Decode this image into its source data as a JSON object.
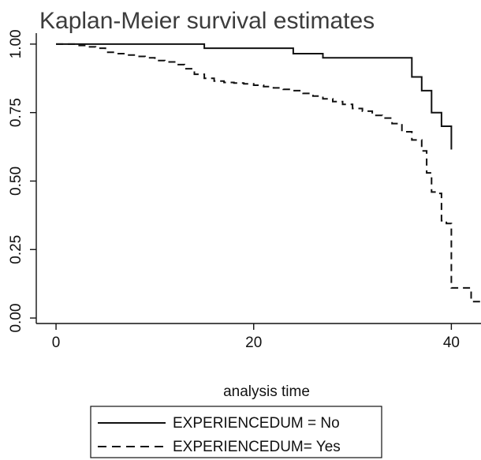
{
  "chart_data": {
    "type": "line",
    "step": true,
    "title": "Kaplan-Meier survival estimates",
    "xlabel": "analysis time",
    "ylabel": "",
    "xlim": [
      -2,
      43
    ],
    "ylim": [
      -0.02,
      1.04
    ],
    "xticks": [
      0,
      20,
      40
    ],
    "xtick_labels": [
      "0",
      "20",
      "40"
    ],
    "yticks": [
      0,
      0.25,
      0.5,
      0.75,
      1.0
    ],
    "ytick_labels": [
      "0.00",
      "0.25",
      "0.50",
      "0.75",
      "1.00"
    ],
    "grid": false,
    "legend_position": "bottom-center",
    "series": [
      {
        "name": "EXPERIENCEDUM = No",
        "style": "solid",
        "color": "#111111",
        "x": [
          0,
          15,
          24,
          27,
          36,
          37,
          38,
          39,
          40
        ],
        "y": [
          1.0,
          0.985,
          0.965,
          0.95,
          0.88,
          0.83,
          0.75,
          0.7,
          0.615
        ]
      },
      {
        "name": "EXPERIENCEDUM= Yes",
        "style": "dashed",
        "color": "#111111",
        "x": [
          0,
          2,
          3,
          4,
          5,
          6,
          7,
          8,
          9,
          10,
          11,
          12,
          13,
          14,
          15,
          16,
          17,
          18,
          19,
          20,
          21,
          22,
          23,
          24,
          25,
          26,
          27,
          28,
          29,
          30,
          31,
          32,
          33,
          34,
          35,
          36,
          37,
          37.5,
          38,
          38.5,
          39,
          39.5,
          40,
          42,
          43
        ],
        "y": [
          1.0,
          0.995,
          0.99,
          0.985,
          0.97,
          0.965,
          0.96,
          0.955,
          0.95,
          0.94,
          0.935,
          0.925,
          0.91,
          0.89,
          0.875,
          0.865,
          0.86,
          0.858,
          0.855,
          0.85,
          0.845,
          0.84,
          0.835,
          0.83,
          0.82,
          0.81,
          0.8,
          0.79,
          0.78,
          0.765,
          0.755,
          0.74,
          0.73,
          0.71,
          0.68,
          0.65,
          0.61,
          0.53,
          0.46,
          0.455,
          0.355,
          0.345,
          0.11,
          0.06,
          0.06
        ]
      }
    ]
  }
}
